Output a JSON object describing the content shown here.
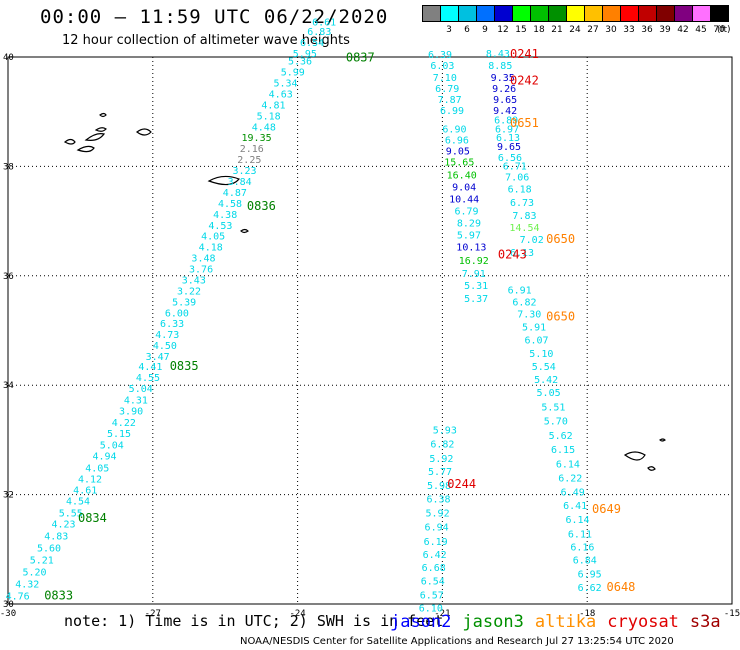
{
  "title": "00:00 – 11:59 UTC 06/22/2020",
  "subtitle": "12 hour collection of altimeter wave heights",
  "legend": {
    "unit": "(ft)",
    "bins": [
      {
        "label": "",
        "color": "#808080"
      },
      {
        "label": "3",
        "color": "#00ffff"
      },
      {
        "label": "6",
        "color": "#00c0e0"
      },
      {
        "label": "9",
        "color": "#0070ff"
      },
      {
        "label": "12",
        "color": "#0000d0"
      },
      {
        "label": "15",
        "color": "#00ff00"
      },
      {
        "label": "18",
        "color": "#00c000"
      },
      {
        "label": "21",
        "color": "#009000"
      },
      {
        "label": "24",
        "color": "#ffff00"
      },
      {
        "label": "27",
        "color": "#ffc000"
      },
      {
        "label": "30",
        "color": "#ff8000"
      },
      {
        "label": "33",
        "color": "#ff0000"
      },
      {
        "label": "36",
        "color": "#c00000"
      },
      {
        "label": "39",
        "color": "#800000"
      },
      {
        "label": "42",
        "color": "#800080"
      },
      {
        "label": "45",
        "color": "#ff70ff"
      },
      {
        "label": "70",
        "color": "#000000"
      }
    ]
  },
  "map": {
    "lon_range": [
      -30,
      -15
    ],
    "lat_range": [
      30,
      40
    ],
    "x_ticks": [
      {
        "v": -30,
        "label": "-30"
      },
      {
        "v": -27,
        "label": "-27"
      },
      {
        "v": -24,
        "label": "-24"
      },
      {
        "v": -21,
        "label": "-21"
      },
      {
        "v": -18,
        "label": "-18"
      },
      {
        "v": -15,
        "label": "-15"
      }
    ],
    "y_ticks": [
      {
        "v": 30,
        "label": "30"
      },
      {
        "v": 32,
        "label": "32"
      },
      {
        "v": 34,
        "label": "34"
      },
      {
        "v": 36,
        "label": "36"
      },
      {
        "v": 38,
        "label": "38"
      },
      {
        "v": 40,
        "label": "40"
      }
    ]
  },
  "tracks": [
    {
      "satellite": "jason3",
      "points": [
        {
          "lon": -29.8,
          "lat": 30.08,
          "v": "4.76",
          "c": "#00d8e8"
        },
        {
          "lon": -29.6,
          "lat": 30.3,
          "v": "4.32",
          "c": "#00d8e8"
        },
        {
          "lon": -29.45,
          "lat": 30.52,
          "v": "5.20",
          "c": "#00d8e8"
        },
        {
          "lon": -29.3,
          "lat": 30.74,
          "v": "5.21",
          "c": "#00d8e8"
        },
        {
          "lon": -29.15,
          "lat": 30.96,
          "v": "5.60",
          "c": "#00d8e8"
        },
        {
          "lon": -29.0,
          "lat": 31.18,
          "v": "4.83",
          "c": "#00d8e8"
        },
        {
          "lon": -28.85,
          "lat": 31.4,
          "v": "4.23",
          "c": "#00d8e8"
        },
        {
          "lon": -28.7,
          "lat": 31.6,
          "v": "5.55",
          "c": "#00d8e8"
        },
        {
          "lon": -28.55,
          "lat": 31.82,
          "v": "4.54",
          "c": "#00d8e8"
        },
        {
          "lon": -28.4,
          "lat": 32.02,
          "v": "4.61",
          "c": "#00d8e8"
        },
        {
          "lon": -28.3,
          "lat": 32.22,
          "v": "4.12",
          "c": "#00d8e8"
        },
        {
          "lon": -28.15,
          "lat": 32.42,
          "v": "4.05",
          "c": "#00d8e8"
        },
        {
          "lon": -28.0,
          "lat": 32.64,
          "v": "4.94",
          "c": "#00d8e8"
        },
        {
          "lon": -27.85,
          "lat": 32.84,
          "v": "5.04",
          "c": "#00d8e8"
        },
        {
          "lon": -27.7,
          "lat": 33.05,
          "v": "5.15",
          "c": "#00d8e8"
        },
        {
          "lon": -27.6,
          "lat": 33.25,
          "v": "4.22",
          "c": "#00d8e8"
        },
        {
          "lon": -27.45,
          "lat": 33.46,
          "v": "3.90",
          "c": "#00d8e8"
        },
        {
          "lon": -27.35,
          "lat": 33.67,
          "v": "4.31",
          "c": "#00d8e8"
        },
        {
          "lon": -27.25,
          "lat": 33.88,
          "v": "5.04",
          "c": "#00d8e8"
        },
        {
          "lon": -27.1,
          "lat": 34.08,
          "v": "4.55",
          "c": "#00d8e8"
        },
        {
          "lon": -27.05,
          "lat": 34.28,
          "v": "4.41",
          "c": "#00d8e8"
        },
        {
          "lon": -26.9,
          "lat": 34.46,
          "v": "3.47",
          "c": "#00d8e8"
        },
        {
          "lon": -26.75,
          "lat": 34.66,
          "v": "4.50",
          "c": "#00d8e8"
        },
        {
          "lon": -26.7,
          "lat": 34.86,
          "v": "4.73",
          "c": "#00d8e8"
        },
        {
          "lon": -26.6,
          "lat": 35.06,
          "v": "6.33",
          "c": "#00d8e8"
        },
        {
          "lon": -26.5,
          "lat": 35.26,
          "v": "6.00",
          "c": "#00d8e8"
        },
        {
          "lon": -26.35,
          "lat": 35.46,
          "v": "5.39",
          "c": "#00d8e8"
        },
        {
          "lon": -26.25,
          "lat": 35.66,
          "v": "3.22",
          "c": "#00d8e8"
        },
        {
          "lon": -26.15,
          "lat": 35.86,
          "v": "3.43",
          "c": "#00d8e8"
        },
        {
          "lon": -26.0,
          "lat": 36.06,
          "v": "3.76",
          "c": "#00d8e8"
        },
        {
          "lon": -25.95,
          "lat": 36.26,
          "v": "3.48",
          "c": "#00d8e8"
        },
        {
          "lon": -25.8,
          "lat": 36.46,
          "v": "4.18",
          "c": "#00d8e8"
        },
        {
          "lon": -25.75,
          "lat": 36.66,
          "v": "4.05",
          "c": "#00d8e8"
        },
        {
          "lon": -25.6,
          "lat": 36.86,
          "v": "4.53",
          "c": "#00d8e8"
        },
        {
          "lon": -25.5,
          "lat": 37.06,
          "v": "4.38",
          "c": "#00d8e8"
        },
        {
          "lon": -25.4,
          "lat": 37.26,
          "v": "4.58",
          "c": "#00d8e8"
        },
        {
          "lon": -25.3,
          "lat": 37.46,
          "v": "4.87",
          "c": "#00d8e8"
        },
        {
          "lon": -25.2,
          "lat": 37.66,
          "v": "3.84",
          "c": "#00d8e8"
        },
        {
          "lon": -25.1,
          "lat": 37.86,
          "v": "3.23",
          "c": "#00d8e8"
        },
        {
          "lon": -25.0,
          "lat": 38.06,
          "v": "2.25",
          "c": "#808080"
        },
        {
          "lon": -24.95,
          "lat": 38.26,
          "v": "2.16",
          "c": "#808080"
        },
        {
          "lon": -24.85,
          "lat": 38.46,
          "v": "19.35",
          "c": "#009000"
        },
        {
          "lon": -24.7,
          "lat": 38.66,
          "v": "4.48",
          "c": "#00d8e8"
        },
        {
          "lon": -24.6,
          "lat": 38.86,
          "v": "5.18",
          "c": "#00d8e8"
        },
        {
          "lon": -24.5,
          "lat": 39.06,
          "v": "4.81",
          "c": "#00d8e8"
        },
        {
          "lon": -24.35,
          "lat": 39.26,
          "v": "4.63",
          "c": "#00d8e8"
        },
        {
          "lon": -24.25,
          "lat": 39.46,
          "v": "5.34",
          "c": "#00d8e8"
        },
        {
          "lon": -24.1,
          "lat": 39.66,
          "v": "5.99",
          "c": "#00d8e8"
        },
        {
          "lon": -23.95,
          "lat": 39.86,
          "v": "5.36",
          "c": "#00d8e8"
        },
        {
          "lon": -23.85,
          "lat": 40.0,
          "v": "5.95",
          "c": "#00d8e8"
        },
        {
          "lon": -23.7,
          "lat": 40.2,
          "v": "6.54",
          "c": "#00d8e8"
        },
        {
          "lon": -23.55,
          "lat": 40.4,
          "v": "6.83",
          "c": "#00d8e8"
        },
        {
          "lon": -23.45,
          "lat": 40.58,
          "v": "6.61",
          "c": "#00d8e8"
        }
      ],
      "time_labels": [
        {
          "lon": -29.25,
          "lat": 30.08,
          "t": "0833"
        },
        {
          "lon": -28.55,
          "lat": 31.5,
          "t": "0834"
        },
        {
          "lon": -26.65,
          "lat": 34.28,
          "t": "0835"
        },
        {
          "lon": -25.05,
          "lat": 37.2,
          "t": "0836"
        },
        {
          "lon": -23.0,
          "lat": 39.92,
          "t": "0837"
        }
      ],
      "time_color": "#008000"
    },
    {
      "satellite": "mixed-north",
      "points": [
        {
          "lon": -21.05,
          "lat": 39.98,
          "v": "6.39",
          "c": "#00d8e8"
        },
        {
          "lon": -21.0,
          "lat": 39.78,
          "v": "6.03",
          "c": "#00d8e8"
        },
        {
          "lon": -20.95,
          "lat": 39.56,
          "v": "7.10",
          "c": "#00d8e8"
        },
        {
          "lon": -20.9,
          "lat": 39.36,
          "v": "6.79",
          "c": "#00d8e8"
        },
        {
          "lon": -20.85,
          "lat": 39.16,
          "v": "7.87",
          "c": "#00d8e8"
        },
        {
          "lon": -20.8,
          "lat": 38.96,
          "v": "6.99",
          "c": "#00d8e8"
        },
        {
          "lon": -20.75,
          "lat": 38.62,
          "v": "6.90",
          "c": "#00d8e8"
        },
        {
          "lon": -20.7,
          "lat": 38.42,
          "v": "6.96",
          "c": "#00d8e8"
        },
        {
          "lon": -20.68,
          "lat": 38.22,
          "v": "9.05",
          "c": "#0000d0"
        },
        {
          "lon": -20.65,
          "lat": 38.02,
          "v": "15.65",
          "c": "#00c000"
        },
        {
          "lon": -20.6,
          "lat": 37.78,
          "v": "16.40",
          "c": "#00c000"
        },
        {
          "lon": -20.55,
          "lat": 37.56,
          "v": "9.04",
          "c": "#0000d0"
        },
        {
          "lon": -20.55,
          "lat": 37.34,
          "v": "10.44",
          "c": "#0000d0"
        },
        {
          "lon": -20.5,
          "lat": 37.12,
          "v": "6.79",
          "c": "#00d8e8"
        },
        {
          "lon": -20.45,
          "lat": 36.9,
          "v": "8.29",
          "c": "#00d8e8"
        },
        {
          "lon": -20.45,
          "lat": 36.68,
          "v": "5.97",
          "c": "#00d8e8"
        },
        {
          "lon": -20.4,
          "lat": 36.46,
          "v": "10.13",
          "c": "#0000d0"
        },
        {
          "lon": -20.35,
          "lat": 36.22,
          "v": "16.92",
          "c": "#00c000"
        },
        {
          "lon": -20.35,
          "lat": 35.98,
          "v": "7.91",
          "c": "#00d8e8"
        },
        {
          "lon": -20.3,
          "lat": 35.76,
          "v": "5.31",
          "c": "#00d8e8"
        },
        {
          "lon": -20.3,
          "lat": 35.52,
          "v": "5.37",
          "c": "#00d8e8"
        },
        {
          "lon": -19.85,
          "lat": 40.0,
          "v": "8.43",
          "c": "#00d8e8"
        },
        {
          "lon": -19.8,
          "lat": 39.78,
          "v": "8.85",
          "c": "#00d8e8"
        },
        {
          "lon": -19.75,
          "lat": 39.56,
          "v": "9.35",
          "c": "#0000d0"
        },
        {
          "lon": -19.72,
          "lat": 39.36,
          "v": "9.26",
          "c": "#0000d0"
        },
        {
          "lon": -19.7,
          "lat": 39.16,
          "v": "9.65",
          "c": "#0000d0"
        },
        {
          "lon": -19.7,
          "lat": 38.96,
          "v": "9.42",
          "c": "#0000d0"
        },
        {
          "lon": -19.68,
          "lat": 38.78,
          "v": "6.89",
          "c": "#00d8e8"
        },
        {
          "lon": -19.66,
          "lat": 38.62,
          "v": "6.97",
          "c": "#00d8e8"
        },
        {
          "lon": -19.64,
          "lat": 38.46,
          "v": "6.13",
          "c": "#00d8e8"
        },
        {
          "lon": -19.62,
          "lat": 38.3,
          "v": "9.65",
          "c": "#0000d0"
        },
        {
          "lon": -19.6,
          "lat": 38.1,
          "v": "6.56",
          "c": "#00d8e8"
        },
        {
          "lon": -19.5,
          "lat": 37.94,
          "v": "6.71",
          "c": "#00d8e8"
        },
        {
          "lon": -19.45,
          "lat": 37.74,
          "v": "7.06",
          "c": "#00d8e8"
        },
        {
          "lon": -19.4,
          "lat": 37.52,
          "v": "6.18",
          "c": "#00d8e8"
        },
        {
          "lon": -19.35,
          "lat": 37.28,
          "v": "6.73",
          "c": "#00d8e8"
        },
        {
          "lon": -19.3,
          "lat": 37.04,
          "v": "7.83",
          "c": "#00d8e8"
        },
        {
          "lon": -19.3,
          "lat": 36.82,
          "v": "14.54",
          "c": "#70f050"
        },
        {
          "lon": -19.15,
          "lat": 36.6,
          "v": "7.02",
          "c": "#00d8e8"
        },
        {
          "lon": -19.35,
          "lat": 36.36,
          "v": "6.13",
          "c": "#00d8e8"
        }
      ],
      "time_labels": [
        {
          "lon": -19.6,
          "lat": 39.98,
          "t": "0241",
          "col": "#e00000"
        },
        {
          "lon": -19.6,
          "lat": 39.5,
          "t": "0242",
          "col": "#e00000"
        },
        {
          "lon": -19.6,
          "lat": 38.72,
          "t": "0651",
          "col": "#ff8000"
        },
        {
          "lon": -18.85,
          "lat": 36.6,
          "t": "0650",
          "col": "#ff8000"
        },
        {
          "lon": -19.85,
          "lat": 36.32,
          "t": "0243",
          "col": "#e00000"
        }
      ]
    },
    {
      "satellite": "altika-south",
      "points": [
        {
          "lon": -19.4,
          "lat": 35.68,
          "v": "6.91",
          "c": "#00d8e8"
        },
        {
          "lon": -19.3,
          "lat": 35.46,
          "v": "6.82",
          "c": "#00d8e8"
        },
        {
          "lon": -19.2,
          "lat": 35.24,
          "v": "7.30",
          "c": "#00d8e8"
        },
        {
          "lon": -19.1,
          "lat": 35.0,
          "v": "5.91",
          "c": "#00d8e8"
        },
        {
          "lon": -19.05,
          "lat": 34.76,
          "v": "6.07",
          "c": "#00d8e8"
        },
        {
          "lon": -18.95,
          "lat": 34.52,
          "v": "5.10",
          "c": "#00d8e8"
        },
        {
          "lon": -18.9,
          "lat": 34.28,
          "v": "5.54",
          "c": "#00d8e8"
        },
        {
          "lon": -18.85,
          "lat": 34.04,
          "v": "5.42",
          "c": "#00d8e8"
        },
        {
          "lon": -18.8,
          "lat": 33.8,
          "v": "5.05",
          "c": "#00d8e8"
        },
        {
          "lon": -18.7,
          "lat": 33.54,
          "v": "5.51",
          "c": "#00d8e8"
        },
        {
          "lon": -18.65,
          "lat": 33.28,
          "v": "5.70",
          "c": "#00d8e8"
        },
        {
          "lon": -18.55,
          "lat": 33.02,
          "v": "5.62",
          "c": "#00d8e8"
        },
        {
          "lon": -18.5,
          "lat": 32.76,
          "v": "6.15",
          "c": "#00d8e8"
        },
        {
          "lon": -18.4,
          "lat": 32.5,
          "v": "6.14",
          "c": "#00d8e8"
        },
        {
          "lon": -18.35,
          "lat": 32.24,
          "v": "6.22",
          "c": "#00d8e8"
        },
        {
          "lon": -18.3,
          "lat": 31.98,
          "v": "6.49",
          "c": "#00d8e8"
        },
        {
          "lon": -18.25,
          "lat": 31.74,
          "v": "6.41",
          "c": "#00d8e8"
        },
        {
          "lon": -18.2,
          "lat": 31.48,
          "v": "6.14",
          "c": "#00d8e8"
        },
        {
          "lon": -18.15,
          "lat": 31.22,
          "v": "6.11",
          "c": "#00d8e8"
        },
        {
          "lon": -18.1,
          "lat": 30.98,
          "v": "6.16",
          "c": "#00d8e8"
        },
        {
          "lon": -18.05,
          "lat": 30.74,
          "v": "6.84",
          "c": "#00d8e8"
        },
        {
          "lon": -17.95,
          "lat": 30.48,
          "v": "6.95",
          "c": "#00d8e8"
        },
        {
          "lon": -17.95,
          "lat": 30.24,
          "v": "6.62",
          "c": "#00d8e8"
        }
      ],
      "time_labels": [
        {
          "lon": -18.85,
          "lat": 35.18,
          "t": "0650",
          "col": "#ff8000"
        },
        {
          "lon": -17.9,
          "lat": 31.66,
          "t": "0649",
          "col": "#ff8000"
        },
        {
          "lon": -17.6,
          "lat": 30.24,
          "t": "0648",
          "col": "#ff8000"
        }
      ]
    },
    {
      "satellite": "cryosat-south",
      "points": [
        {
          "lon": -20.95,
          "lat": 33.12,
          "v": "5.93",
          "c": "#00d8e8"
        },
        {
          "lon": -21.0,
          "lat": 32.86,
          "v": "6.82",
          "c": "#00d8e8"
        },
        {
          "lon": -21.02,
          "lat": 32.6,
          "v": "5.92",
          "c": "#00d8e8"
        },
        {
          "lon": -21.05,
          "lat": 32.36,
          "v": "5.77",
          "c": "#00d8e8"
        },
        {
          "lon": -21.07,
          "lat": 32.1,
          "v": "5.98",
          "c": "#00d8e8"
        },
        {
          "lon": -21.08,
          "lat": 31.86,
          "v": "6.38",
          "c": "#00d8e8"
        },
        {
          "lon": -21.1,
          "lat": 31.6,
          "v": "5.92",
          "c": "#00d8e8"
        },
        {
          "lon": -21.12,
          "lat": 31.34,
          "v": "6.94",
          "c": "#00d8e8"
        },
        {
          "lon": -21.14,
          "lat": 31.08,
          "v": "6.19",
          "c": "#00d8e8"
        },
        {
          "lon": -21.16,
          "lat": 30.84,
          "v": "6.42",
          "c": "#00d8e8"
        },
        {
          "lon": -21.18,
          "lat": 30.6,
          "v": "6.68",
          "c": "#00d8e8"
        },
        {
          "lon": -21.2,
          "lat": 30.36,
          "v": "6.54",
          "c": "#00d8e8"
        },
        {
          "lon": -21.22,
          "lat": 30.1,
          "v": "6.57",
          "c": "#00d8e8"
        },
        {
          "lon": -21.24,
          "lat": 29.86,
          "v": "6.10",
          "c": "#00d8e8"
        }
      ],
      "time_labels": [
        {
          "lon": -20.9,
          "lat": 32.12,
          "t": "0244",
          "col": "#e00000"
        }
      ]
    }
  ],
  "note": {
    "prefix": "note: 1) Time is in UTC; 2) SWH is in feet",
    "satellites": [
      {
        "name": "jason2",
        "color": "#0000ff"
      },
      {
        "name": "jason3",
        "color": "#009000"
      },
      {
        "name": "altika",
        "color": "#ff9000"
      },
      {
        "name": "cryosat",
        "color": "#e00000"
      },
      {
        "name": "s3a",
        "color": "#a00000"
      }
    ]
  },
  "credit": "NOAA/NESDIS Center for Satellite Applications and Research    Jul 27 13:25:54 UTC 2020"
}
